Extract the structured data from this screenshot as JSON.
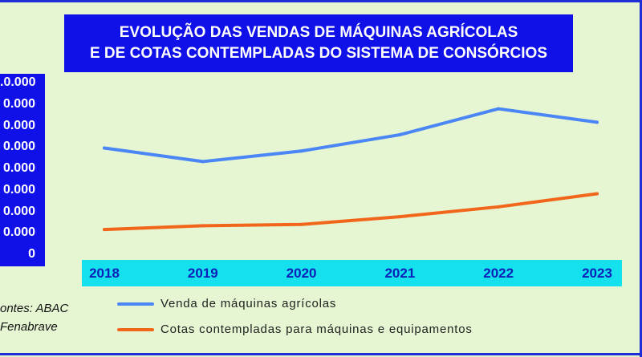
{
  "title": {
    "line1": "EVOLUÇÃO DAS VENDAS DE MÁQUINAS AGRÍCOLAS",
    "line2": "E DE COTAS CONTEMPLADAS DO SISTEMA DE CONSÓRCIOS"
  },
  "source": {
    "line1": "ontes: ABAC",
    "line2": "Fenabrave"
  },
  "colors": {
    "background": "#e6f6d2",
    "title_bg": "#1010e8",
    "yaxis_bg": "#1010e8",
    "xaxis_bg": "#14e0ee",
    "series1": "#4a86f5",
    "series2": "#f2661c"
  },
  "chart_data": {
    "type": "line",
    "x": [
      "2018",
      "2019",
      "2020",
      "2021",
      "2022",
      "2023"
    ],
    "ytick_labels": [
      ".0.000",
      "0.000",
      "0.000",
      "0.000",
      "0.000",
      "0.000",
      "0.000",
      "0.000",
      "0"
    ],
    "ylim": [
      0,
      8
    ],
    "grid": false,
    "legend_position": "bottom",
    "series": [
      {
        "name": "Venda de máquinas agrícolas",
        "color": "#4a86f5",
        "values": [
          4.99,
          4.36,
          4.85,
          5.61,
          6.82,
          6.19
        ]
      },
      {
        "name": "Cotas contempladas para máquinas e equipamentos",
        "color": "#f2661c",
        "values": [
          1.19,
          1.37,
          1.43,
          1.79,
          2.25,
          2.86
        ]
      }
    ]
  }
}
